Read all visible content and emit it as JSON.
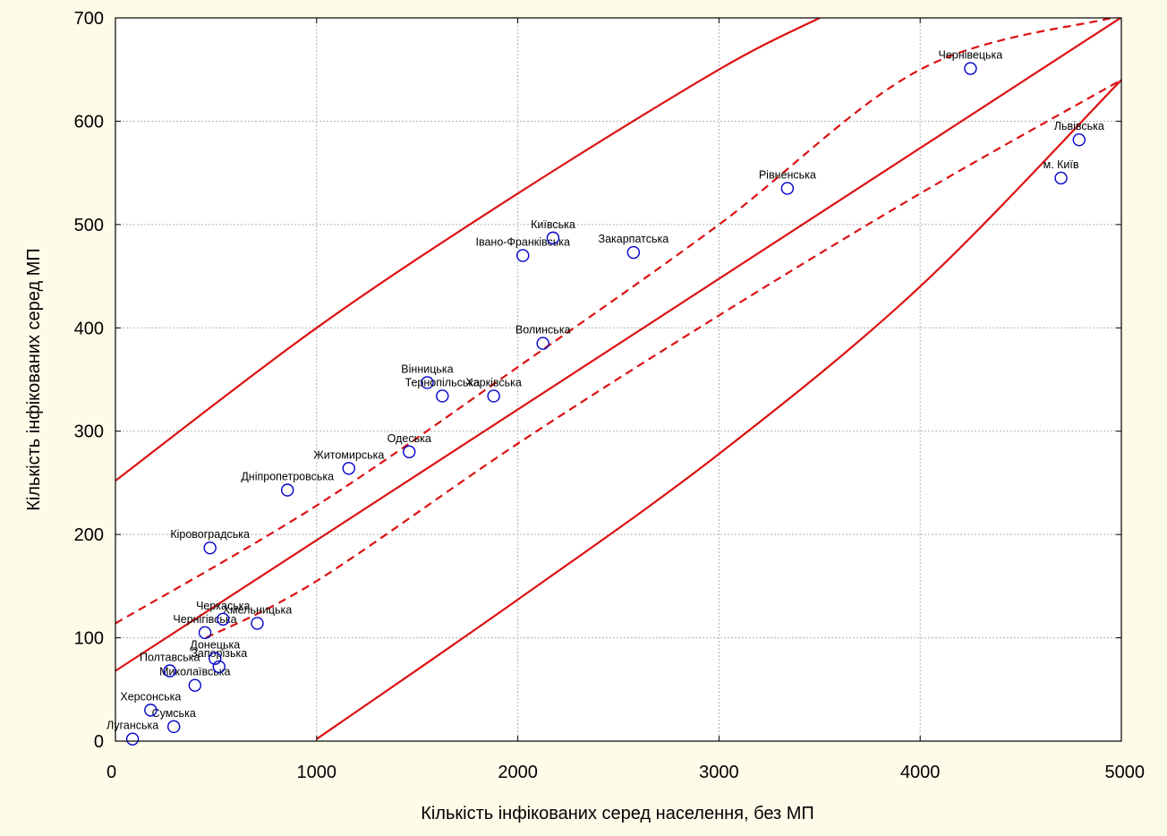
{
  "chart_data": {
    "type": "scatter",
    "title": "",
    "xlabel": "Кількість інфікованих серед населення, без МП",
    "ylabel": "Кількість інфікованих серед МП",
    "xlim": [
      0,
      5000
    ],
    "ylim": [
      0,
      700
    ],
    "x_ticks": [
      0,
      1000,
      2000,
      3000,
      4000,
      5000
    ],
    "y_ticks": [
      0,
      100,
      200,
      300,
      400,
      500,
      600,
      700
    ],
    "grid": true,
    "legend": "none",
    "colors": {
      "background": "#fffbe9",
      "plot_area": "#ffffff",
      "points": "#0000cc",
      "fit_lines": "#dd1111",
      "grid": "#b0b0b0"
    },
    "points": [
      {
        "label": "Луганська",
        "x": 85,
        "y": 2
      },
      {
        "label": "Сумська",
        "x": 290,
        "y": 14
      },
      {
        "label": "Херсонська",
        "x": 175,
        "y": 30
      },
      {
        "label": "Миколаївська",
        "x": 395,
        "y": 54
      },
      {
        "label": "Полтавська",
        "x": 270,
        "y": 68
      },
      {
        "label": "Запорізька",
        "x": 515,
        "y": 72
      },
      {
        "label": "Донецька",
        "x": 495,
        "y": 80
      },
      {
        "label": "Чернігівська",
        "x": 445,
        "y": 105
      },
      {
        "label": "Хмельницька",
        "x": 705,
        "y": 114
      },
      {
        "label": "Черкаська",
        "x": 535,
        "y": 118
      },
      {
        "label": "Кіровоградська",
        "x": 470,
        "y": 187
      },
      {
        "label": "Дніпропетровська",
        "x": 855,
        "y": 243
      },
      {
        "label": "Житомирська",
        "x": 1160,
        "y": 264
      },
      {
        "label": "Одеська",
        "x": 1460,
        "y": 280
      },
      {
        "label": "Вінницька",
        "x": 1550,
        "y": 347
      },
      {
        "label": "Тернопільська",
        "x": 1625,
        "y": 334
      },
      {
        "label": "Харківська",
        "x": 1880,
        "y": 334
      },
      {
        "label": "Волинська",
        "x": 2125,
        "y": 385
      },
      {
        "label": "Івано-Франківська",
        "x": 2025,
        "y": 470
      },
      {
        "label": "Київська",
        "x": 2175,
        "y": 487
      },
      {
        "label": "Закарпатська",
        "x": 2575,
        "y": 473
      },
      {
        "label": "Рівненська",
        "x": 3340,
        "y": 535
      },
      {
        "label": "Чернівецька",
        "x": 4250,
        "y": 651
      },
      {
        "label": "Львівська",
        "x": 4790,
        "y": 582
      },
      {
        "label": "м. Київ",
        "x": 4700,
        "y": 545
      }
    ],
    "fit_line": {
      "intercept": 68,
      "slope": 0.1265
    },
    "confidence_band": {
      "upper": [
        [
          0,
          114
        ],
        [
          1000,
          228
        ],
        [
          2000,
          362
        ],
        [
          3000,
          500
        ],
        [
          4000,
          650
        ],
        [
          4950,
          700
        ]
      ],
      "lower": [
        [
          450,
          100
        ],
        [
          1000,
          155
        ],
        [
          2000,
          288
        ],
        [
          3000,
          412
        ],
        [
          4000,
          530
        ],
        [
          5000,
          640
        ]
      ]
    },
    "prediction_band": {
      "upper": [
        [
          0,
          252
        ],
        [
          1000,
          400
        ],
        [
          2000,
          530
        ],
        [
          3000,
          650
        ],
        [
          3500,
          700
        ]
      ],
      "lower": [
        [
          1000,
          2
        ],
        [
          2000,
          137
        ],
        [
          3000,
          278
        ],
        [
          4000,
          440
        ],
        [
          5000,
          640
        ]
      ]
    }
  }
}
